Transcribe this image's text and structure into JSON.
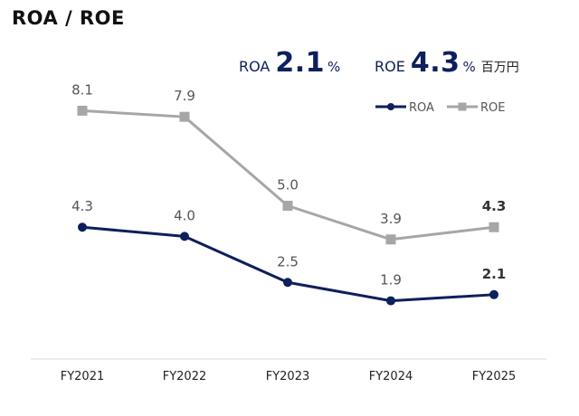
{
  "header": {
    "title": "ROA / ROE",
    "roa_label": "ROA",
    "roa_value": "2.1",
    "roa_unit": "%",
    "roe_label": "ROE",
    "roe_value": "4.3",
    "roe_unit": "%",
    "roe_extra": "百万円"
  },
  "chart_data": {
    "type": "line",
    "categories": [
      "FY2021",
      "FY2022",
      "FY2023",
      "FY2024",
      "FY2025"
    ],
    "series": [
      {
        "name": "ROA",
        "values": [
          4.3,
          4.0,
          2.5,
          1.9,
          2.1
        ],
        "color": "#0d1f5c",
        "marker": "circle"
      },
      {
        "name": "ROE",
        "values": [
          8.1,
          7.9,
          5.0,
          3.9,
          4.3
        ],
        "color": "#a6a6a6",
        "marker": "square"
      }
    ],
    "data_labels": {
      "ROA": [
        "4.3",
        "4.0",
        "2.5",
        "1.9",
        "2.1"
      ],
      "ROE": [
        "8.1",
        "7.9",
        "5.0",
        "3.9",
        "4.3"
      ]
    },
    "highlight_last_label": true,
    "legend_position": "top-right",
    "grid": false,
    "ylim": [
      0,
      9
    ]
  }
}
